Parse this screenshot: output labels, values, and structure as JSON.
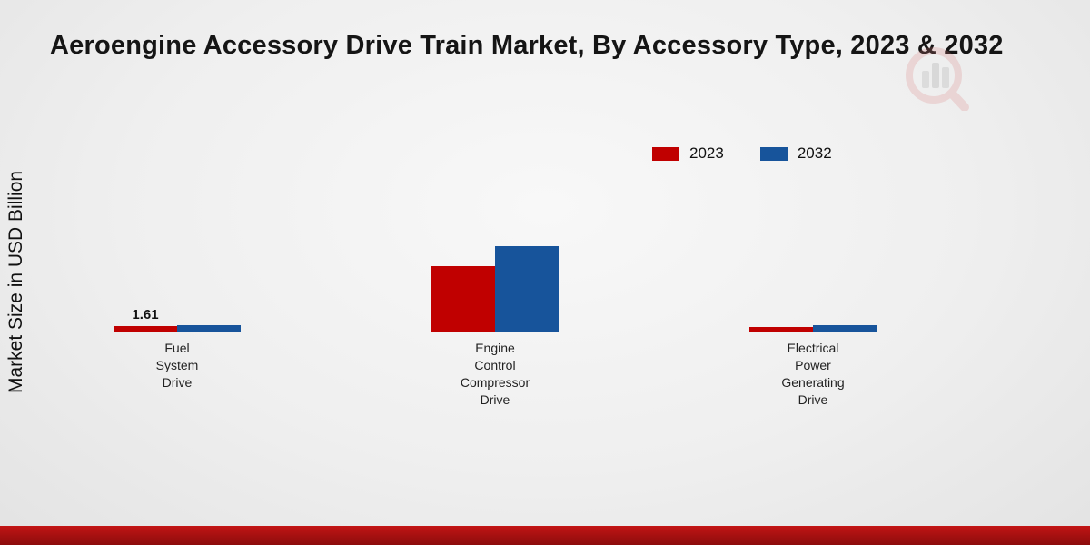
{
  "title": "Aeroengine Accessory Drive Train Market, By Accessory Type, 2023 & 2032",
  "ylabel": "Market Size in USD Billion",
  "colors": {
    "series_2023": "#c00000",
    "series_2032": "#17549b",
    "footer_bar": "#a31010"
  },
  "chart_data": {
    "type": "bar",
    "title": "Aeroengine Accessory Drive Train Market, By Accessory Type, 2023 & 2032",
    "xlabel": "",
    "ylabel": "Market Size in USD Billion",
    "categories": [
      "Fuel System Drive",
      "Engine Control Compressor Drive",
      "Electrical Power Generating Drive"
    ],
    "series": [
      {
        "name": "2023",
        "color": "#c00000",
        "values": [
          1.61,
          19.5,
          1.3
        ]
      },
      {
        "name": "2032",
        "color": "#17549b",
        "values": [
          1.9,
          25.5,
          1.8
        ]
      }
    ],
    "annotations": [
      {
        "text": "1.61",
        "series_index": 0,
        "category_index": 0
      }
    ],
    "ylim": [
      0,
      28
    ],
    "grid": false,
    "baseline_style": "dashed",
    "legend_position": "top-right"
  }
}
